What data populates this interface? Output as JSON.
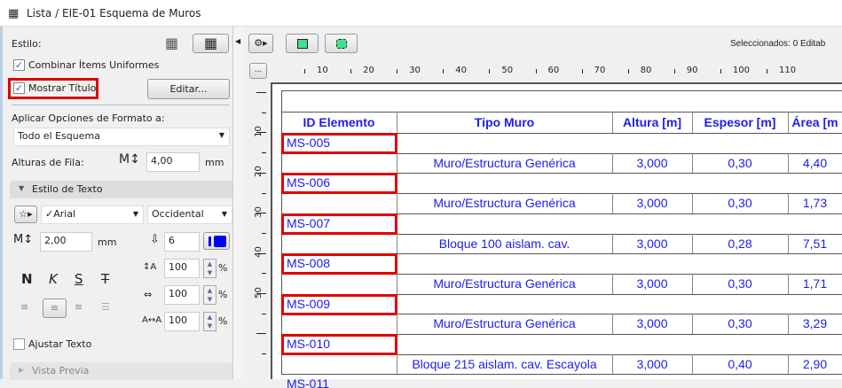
{
  "window": {
    "title": "Lista / EIE-01 Esquema de Muros",
    "icon": "grid-icon"
  },
  "panel": {
    "style_label": "Estilo:",
    "combine_label": "Combinar Ítems Uniformes",
    "combine_checked": true,
    "show_title_label": "Mostrar Título",
    "show_title_checked": true,
    "edit_button": "Editar...",
    "apply_label": "Aplicar Opciones de Formato a:",
    "apply_value": "Todo el Esquema",
    "row_height_label": "Alturas de Fila:",
    "row_height_value": "4,00",
    "row_height_unit": "mm",
    "text_style_section": "Estilo de Texto",
    "font_value": "✓Arial",
    "script_value": "Occidental",
    "font_size_value": "2,00",
    "font_size_unit": "mm",
    "pen_value": "6",
    "bold": "N",
    "italic": "K",
    "underline": "S",
    "strike": "T",
    "line_spacing": "100",
    "width_scale": "100",
    "char_spacing": "100",
    "percent": "%",
    "wrap_label": "Ajustar Texto",
    "wrap_checked": false,
    "preview_section": "Vista Previa",
    "pen_color": "#0000ff"
  },
  "toolbar": {
    "selected_text": "Seleccionados: 0  Editab",
    "more_button": "..."
  },
  "ruler": {
    "top": [
      "10",
      "20",
      "30",
      "40",
      "50",
      "60",
      "70",
      "80",
      "90",
      "100",
      "110"
    ],
    "left": [
      "10",
      "20",
      "30",
      "40",
      "50"
    ]
  },
  "table": {
    "headers": [
      "ID Elemento",
      "Tipo Muro",
      "Altura [m]",
      "Espesor [m]",
      "Área [m"
    ],
    "groups": [
      {
        "id": "MS-005",
        "tipo": "Muro/Estructura Genérica",
        "altura": "3,000",
        "espesor": "0,30",
        "area": "4,40"
      },
      {
        "id": "MS-006",
        "tipo": "Muro/Estructura Genérica",
        "altura": "3,000",
        "espesor": "0,30",
        "area": "1,73"
      },
      {
        "id": "MS-007",
        "tipo": "Bloque 100 aislam. cav.",
        "altura": "3,000",
        "espesor": "0,28",
        "area": "7,51"
      },
      {
        "id": "MS-008",
        "tipo": "Muro/Estructura Genérica",
        "altura": "3,000",
        "espesor": "0,30",
        "area": "1,71"
      },
      {
        "id": "MS-009",
        "tipo": "Muro/Estructura Genérica",
        "altura": "3,000",
        "espesor": "0,30",
        "area": "3,29"
      },
      {
        "id": "MS-010",
        "tipo": "Bloque 215 aislam. cav. Escayola",
        "altura": "3,000",
        "espesor": "0,40",
        "area": "2,90"
      }
    ],
    "partial_id": "MS-011",
    "text_color": "#1c1cf0",
    "highlight_color": "#e00000"
  }
}
